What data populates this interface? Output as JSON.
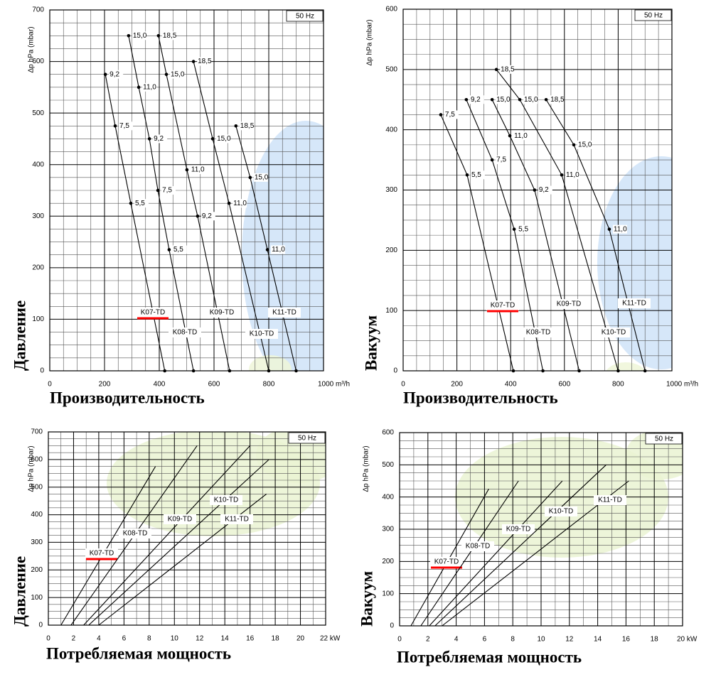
{
  "chart_data": [
    {
      "type": "line",
      "badge": "50 Hz",
      "y_label": "Δp hPa (mbar)",
      "side_label": "Давление",
      "x_title": "Производительность",
      "xlim": [
        0,
        1000
      ],
      "ylim": [
        0,
        700
      ],
      "xticks": [
        0,
        200,
        400,
        600,
        800,
        {
          "value": 1000,
          "label": "1000 m³/h"
        }
      ],
      "yticks": [
        0,
        100,
        200,
        300,
        400,
        500,
        600,
        700
      ],
      "grid": true,
      "minor_grid_divisions": [
        4,
        4
      ],
      "markers": true,
      "color": "#000000",
      "series": [
        {
          "name": "K07-TD",
          "underline": "#ff0000",
          "x": [
            203,
            239,
            296,
            420
          ],
          "values": [
            575,
            475,
            325,
            0
          ],
          "point_labels": [
            "9,2",
            "7,5",
            "5,5",
            null
          ]
        },
        {
          "name": "K08-TD",
          "x": [
            288,
            325,
            364,
            395,
            436,
            525
          ],
          "values": [
            650,
            550,
            450,
            350,
            235,
            0
          ],
          "point_labels": [
            "15,0",
            "11,0",
            "9,2",
            "7,5",
            "5,5",
            null
          ]
        },
        {
          "name": "K09-TD",
          "x": [
            397,
            426,
            501,
            540,
            657
          ],
          "values": [
            650,
            575,
            390,
            300,
            0
          ],
          "point_labels": [
            "18,5",
            "15,0",
            "11,0",
            "9,2",
            null
          ]
        },
        {
          "name": "K10-TD",
          "x": [
            525,
            595,
            655,
            800
          ],
          "values": [
            600,
            450,
            325,
            0
          ],
          "point_labels": [
            "18,5",
            "15,0",
            "11,0",
            null
          ]
        },
        {
          "name": "K11-TD",
          "x": [
            680,
            732,
            795,
            900
          ],
          "values": [
            475,
            375,
            235,
            0
          ],
          "point_labels": [
            "18,5",
            "15,0",
            "11,0",
            null
          ]
        }
      ]
    },
    {
      "type": "line",
      "badge": "50 Hz",
      "y_label": "Δp hPa (mbar)",
      "side_label": "Вакуум",
      "x_title": "Производительность",
      "xlim": [
        0,
        1000
      ],
      "ylim": [
        0,
        600
      ],
      "xticks": [
        0,
        200,
        400,
        600,
        800,
        {
          "value": 1000,
          "label": "1000 m³/h"
        }
      ],
      "yticks": [
        0,
        100,
        200,
        300,
        400,
        500,
        600
      ],
      "grid": true,
      "minor_grid_divisions": [
        4,
        4
      ],
      "markers": true,
      "color": "#000000",
      "series": [
        {
          "name": "K07-TD",
          "underline": "#ff0000",
          "x": [
            140,
            238,
            410
          ],
          "values": [
            425,
            325,
            0
          ],
          "point_labels": [
            "7,5",
            "5,5",
            null
          ]
        },
        {
          "name": "K08-TD",
          "x": [
            235,
            331,
            413,
            520
          ],
          "values": [
            450,
            350,
            235,
            0
          ],
          "point_labels": [
            "9,2",
            "7,5",
            "5,5",
            null
          ]
        },
        {
          "name": "K09-TD",
          "x": [
            331,
            397,
            489,
            655
          ],
          "values": [
            450,
            390,
            300,
            0
          ],
          "point_labels": [
            "15,0",
            "11,0",
            "9,2",
            null
          ]
        },
        {
          "name": "K10-TD",
          "x": [
            347,
            434,
            590,
            800
          ],
          "values": [
            500,
            450,
            325,
            0
          ],
          "point_labels": [
            "18,5",
            "15,0",
            "11,0",
            null
          ]
        },
        {
          "name": "K11-TD",
          "x": [
            532,
            635,
            767,
            900
          ],
          "values": [
            450,
            375,
            235,
            0
          ],
          "point_labels": [
            "18,5",
            "15,0",
            "11,0",
            null
          ]
        }
      ]
    },
    {
      "type": "line",
      "badge": "50 Hz",
      "y_label": "Δp hPa (mbar)",
      "side_label": "Давление",
      "x_title": "Потребляемая мощность",
      "xlim": [
        0,
        22
      ],
      "ylim": [
        0,
        700
      ],
      "xticks": [
        0,
        2,
        4,
        6,
        8,
        10,
        12,
        14,
        16,
        18,
        20,
        {
          "value": 22,
          "label": "22 kW"
        }
      ],
      "yticks": [
        0,
        100,
        200,
        300,
        400,
        500,
        600,
        700
      ],
      "grid": true,
      "minor_grid_divisions": [
        2,
        4
      ],
      "markers": false,
      "color": "#000000",
      "series": [
        {
          "name": "K07-TD",
          "underline": "#ff0000",
          "x": [
            1,
            8.5
          ],
          "values": [
            0,
            575
          ]
        },
        {
          "name": "K08-TD",
          "x": [
            1.8,
            11.8
          ],
          "values": [
            0,
            650
          ]
        },
        {
          "name": "K09-TD",
          "x": [
            2.8,
            16
          ],
          "values": [
            0,
            650
          ]
        },
        {
          "name": "K10-TD",
          "x": [
            3.2,
            17.5
          ],
          "values": [
            0,
            600
          ]
        },
        {
          "name": "K11-TD",
          "x": [
            4,
            17.3
          ],
          "values": [
            0,
            475
          ]
        }
      ]
    },
    {
      "type": "line",
      "badge": "50 Hz",
      "y_label": "Δp hPa (mbar)",
      "side_label": "Вакуум",
      "x_title": "Потребляемая мощность",
      "xlim": [
        0,
        20
      ],
      "ylim": [
        0,
        600
      ],
      "xticks": [
        0,
        2,
        4,
        6,
        8,
        10,
        12,
        14,
        16,
        18,
        {
          "value": 20,
          "label": "20 kW"
        }
      ],
      "yticks": [
        0,
        100,
        200,
        300,
        400,
        500,
        600
      ],
      "grid": true,
      "minor_grid_divisions": [
        2,
        4
      ],
      "markers": false,
      "color": "#000000",
      "series": [
        {
          "name": "K07-TD",
          "underline": "#ff0000",
          "x": [
            0.8,
            6.3
          ],
          "values": [
            0,
            425
          ]
        },
        {
          "name": "K08-TD",
          "x": [
            1.5,
            8.4
          ],
          "values": [
            0,
            450
          ]
        },
        {
          "name": "K09-TD",
          "x": [
            2.1,
            11.5
          ],
          "values": [
            0,
            450
          ]
        },
        {
          "name": "K10-TD",
          "x": [
            2.5,
            14.6
          ],
          "values": [
            0,
            500
          ]
        },
        {
          "name": "K11-TD",
          "x": [
            3,
            16.2
          ],
          "values": [
            0,
            450
          ]
        }
      ]
    }
  ]
}
